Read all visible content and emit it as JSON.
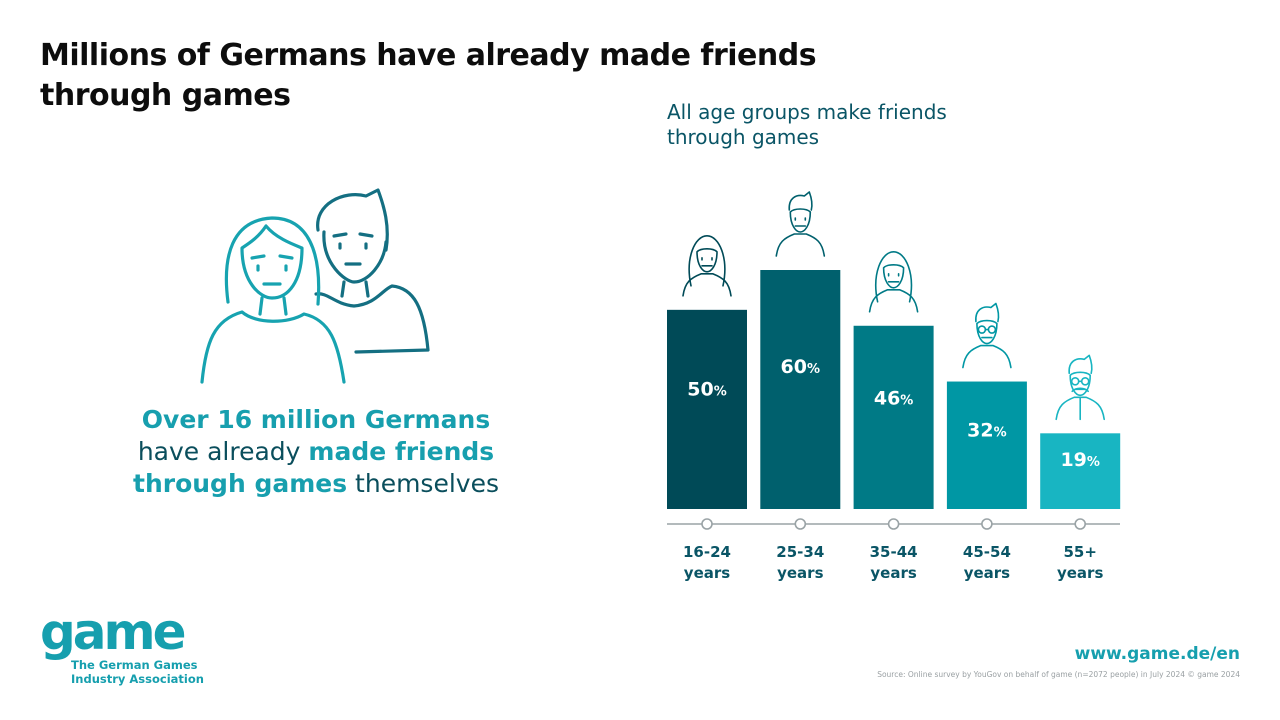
{
  "page": {
    "title": "Millions of Germans have already made friends through games",
    "stat": {
      "part1": "Over 16 million Germans",
      "part2": "have already ",
      "part3": "made friends",
      "part4": "through games",
      "part5": " themselves"
    },
    "chart_heading": "All age groups make friends through games",
    "logo": {
      "word": "game",
      "sub1": "The German Games",
      "sub2": "Industry Association"
    },
    "url": "www.game.de/en",
    "source": "Source: Online survey by YouGov on behalf of game (n=2072 people) in July 2024 © game 2024"
  },
  "icons": {
    "main_illustration": "woman-and-man-icon",
    "age_icons": [
      "young-woman-icon",
      "young-man-icon",
      "woman-icon",
      "man-with-glasses-icon",
      "older-man-with-glasses-icon"
    ]
  },
  "chart_data": {
    "type": "bar",
    "title": "All age groups make friends through games",
    "categories": [
      "16-24 years",
      "25-34 years",
      "35-44 years",
      "45-54 years",
      "55+ years"
    ],
    "category_lines": [
      [
        "16-24",
        "years"
      ],
      [
        "25-34",
        "years"
      ],
      [
        "35-44",
        "years"
      ],
      [
        "45-54",
        "years"
      ],
      [
        "55+",
        "years"
      ]
    ],
    "values": [
      50,
      60,
      46,
      32,
      19
    ],
    "value_suffix": "%",
    "ylim": [
      0,
      60
    ],
    "colors": [
      "#004a57",
      "#00606d",
      "#007a86",
      "#0097a4",
      "#18b5c2"
    ],
    "label_color": "#0a5566",
    "grid": false,
    "legend": "none"
  }
}
